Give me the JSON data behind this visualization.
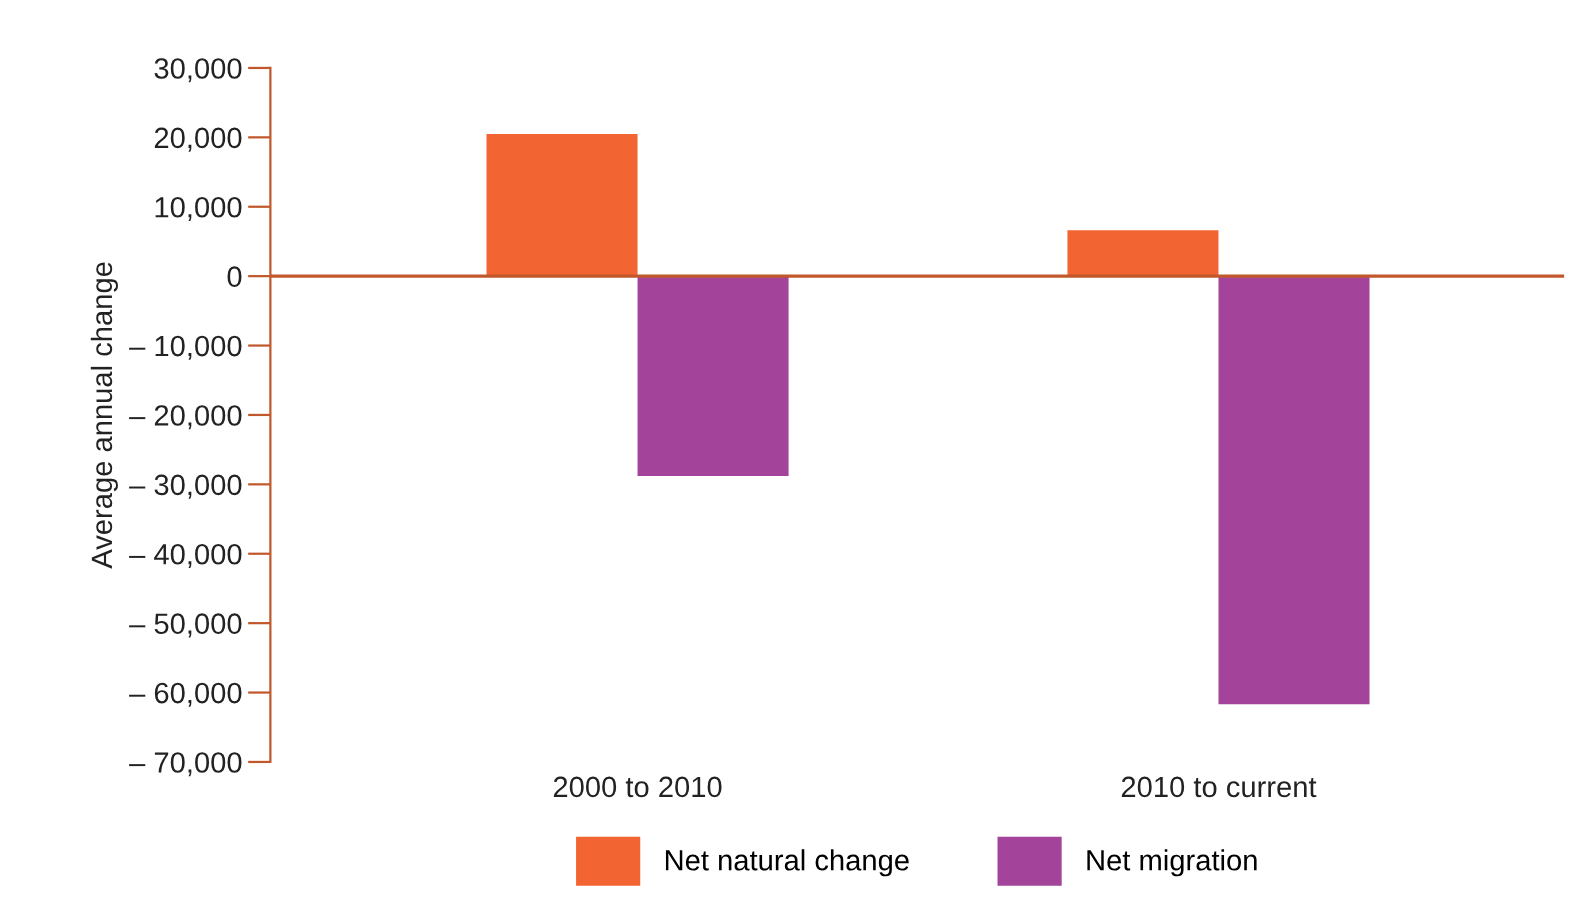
{
  "chart_data": {
    "type": "bar",
    "ylabel": "Average annual change",
    "categories": [
      "2000 to 2010",
      "2010 to current"
    ],
    "series": [
      {
        "name": "Net natural change",
        "color": "#f26532",
        "values": [
          20500,
          6600
        ]
      },
      {
        "name": "Net migration",
        "color": "#a3449a",
        "values": [
          -28800,
          -61700
        ]
      }
    ],
    "ylim": [
      -70000,
      30000
    ],
    "yticks": [
      {
        "value": 30000,
        "label": "30,000"
      },
      {
        "value": 20000,
        "label": "20,000"
      },
      {
        "value": 10000,
        "label": "10,000"
      },
      0,
      {
        "value": -10000,
        "label": "– 10,000"
      },
      {
        "value": -20000,
        "label": "– 20,000"
      },
      {
        "value": -30000,
        "label": "– 30,000"
      },
      {
        "value": -40000,
        "label": "– 40,000"
      },
      {
        "value": -50000,
        "label": "– 50,000"
      },
      {
        "value": -60000,
        "label": "– 60,000"
      },
      {
        "value": -70000,
        "label": "– 70,000"
      }
    ],
    "ref_lines": [
      {
        "axis": "y",
        "value": 0,
        "color": "#c0582b"
      }
    ],
    "grid": false,
    "legend": "bottom"
  }
}
